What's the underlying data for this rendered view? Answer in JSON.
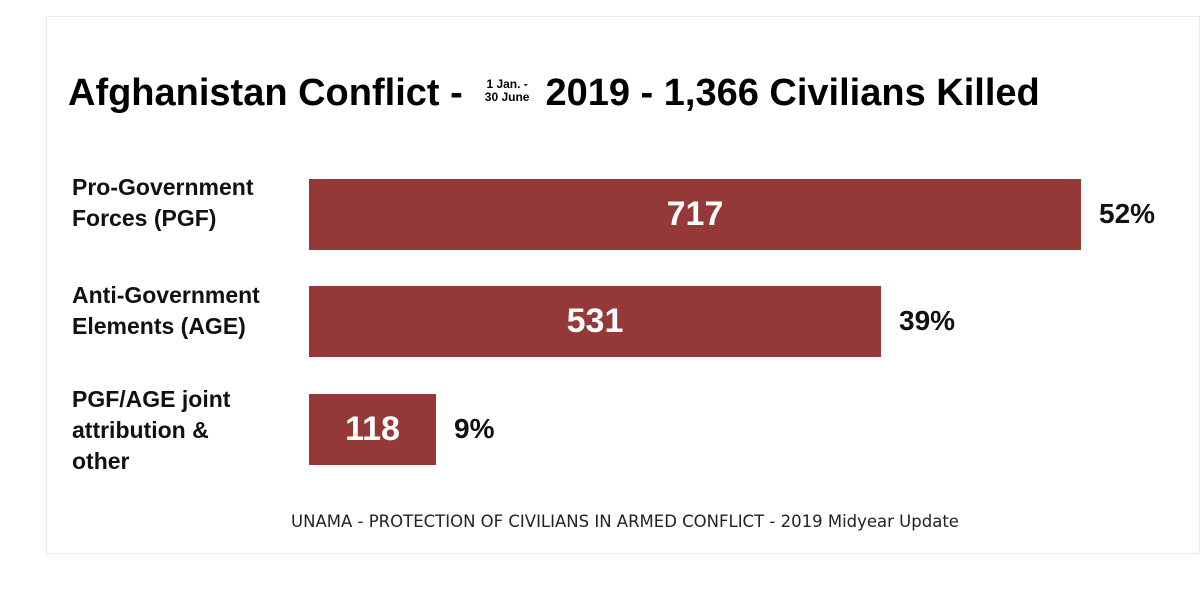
{
  "chart_data": {
    "type": "bar",
    "orientation": "horizontal",
    "title": {
      "main": "Afghanistan Conflict -",
      "date_line1": "1 Jan. -",
      "date_line2": "30 June",
      "rest": "2019 - 1,366 Civilians Killed"
    },
    "categories": [
      "Pro-Government\nForces (PGF)",
      "Anti-Government\nElements (AGE)",
      "PGF/AGE joint\nattribution &\nother"
    ],
    "values": [
      717,
      531,
      118
    ],
    "value_labels": [
      "717",
      "531",
      "118"
    ],
    "percent_labels": [
      "52%",
      "39%",
      "9%"
    ],
    "xlim": [
      0,
      717
    ],
    "grid": false,
    "legend": "none",
    "bar_color": "#943838",
    "source": "UNAMA - PROTECTION OF CIVILIANS IN ARMED CONFLICT - 2019 Midyear Update"
  }
}
